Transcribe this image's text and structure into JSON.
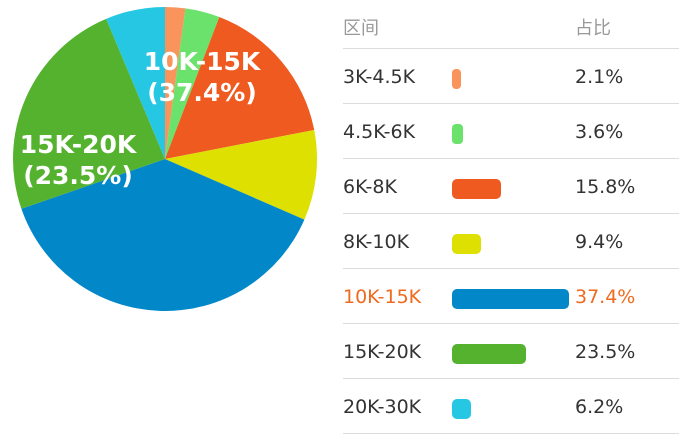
{
  "chart_data": {
    "type": "pie",
    "slices": [
      {
        "label": "3K-4.5K",
        "value": 2.1,
        "pct_text": "2.1%",
        "color": "#f9955c"
      },
      {
        "label": "4.5K-6K",
        "value": 3.6,
        "pct_text": "3.6%",
        "color": "#6be26b"
      },
      {
        "label": "6K-8K",
        "value": 15.8,
        "pct_text": "15.8%",
        "color": "#ef5a20"
      },
      {
        "label": "8K-10K",
        "value": 9.4,
        "pct_text": "9.4%",
        "color": "#dde000"
      },
      {
        "label": "10K-15K",
        "value": 37.4,
        "pct_text": "37.4%",
        "color": "#0288c8"
      },
      {
        "label": "15K-20K",
        "value": 23.5,
        "pct_text": "23.5%",
        "color": "#54b22f"
      },
      {
        "label": "20K-30K",
        "value": 6.2,
        "pct_text": "6.2%",
        "color": "#25c7e2"
      }
    ],
    "pie_labels": [
      {
        "slice": "10K-15K",
        "line1": "10K-15K",
        "line2": "(37.4%)"
      },
      {
        "slice": "15K-20K",
        "line1": "15K-20K",
        "line2": "(23.5%)"
      }
    ]
  },
  "table": {
    "col_range": "区间",
    "col_share": "占比",
    "highlighted": "10K-15K",
    "highlight_color": "#ef6a1e"
  }
}
